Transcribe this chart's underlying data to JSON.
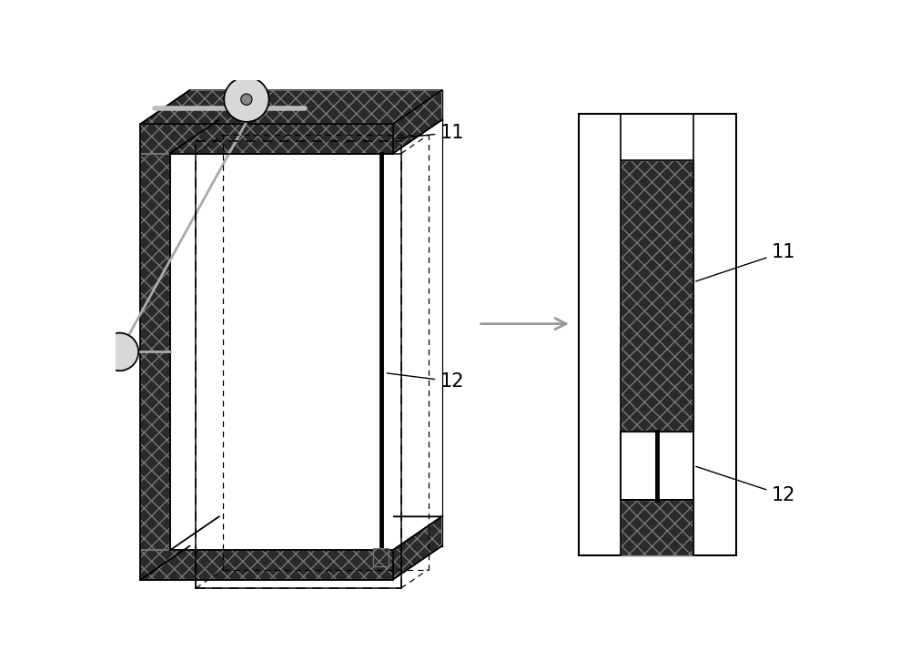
{
  "bg_color": "#ffffff",
  "hatch_pattern": "xx",
  "label_11": "11",
  "label_12": "12",
  "label_fontsize": 15,
  "fig_width": 10.0,
  "fig_height": 7.37,
  "dpi": 100,
  "cnt_dark": "#2a2a2a",
  "cnt_edge": "#777777",
  "face_light": "#e8e8e8",
  "face_mid": "#d0d0d0",
  "line_color": "#000000"
}
